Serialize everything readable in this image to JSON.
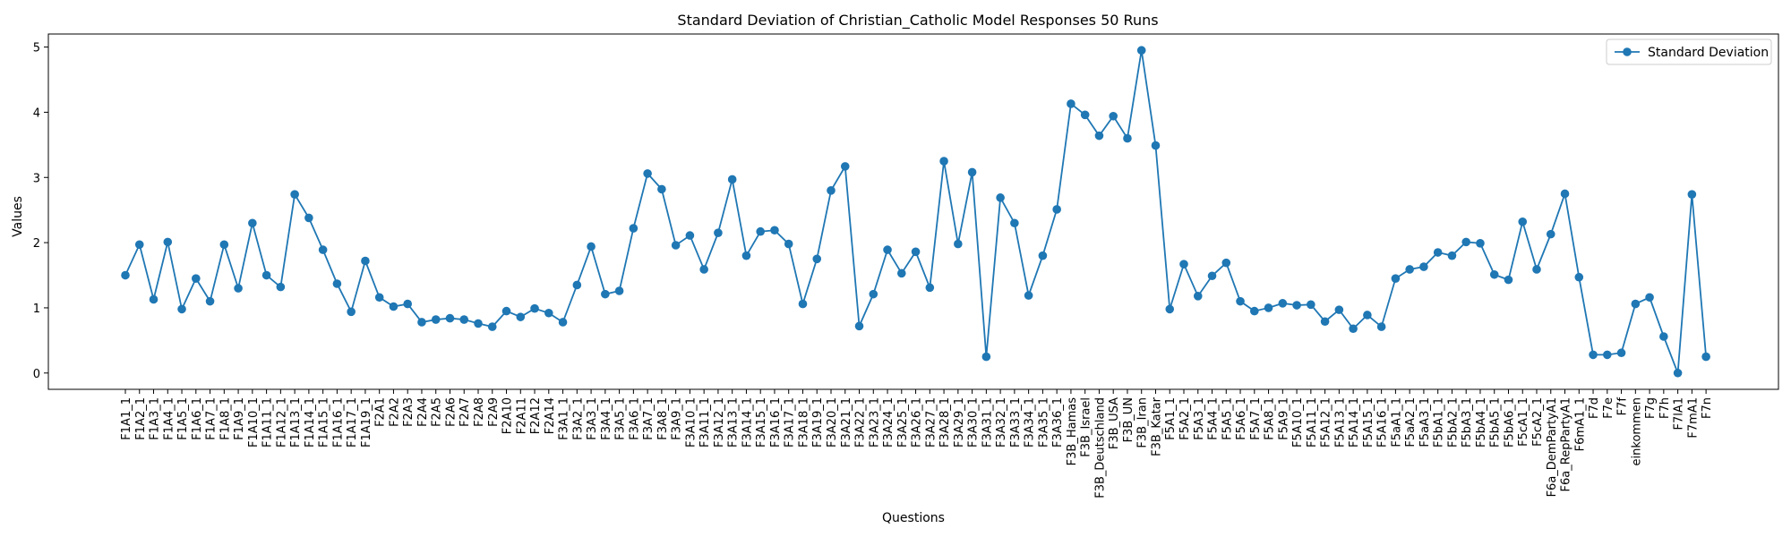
{
  "chart_data": {
    "type": "line",
    "title": "Standard Deviation of Christian_Catholic Model Responses 50 Runs",
    "xlabel": "Questions",
    "ylabel": "Values",
    "ylim": [
      -0.25,
      5.2
    ],
    "yticks": [
      0,
      1,
      2,
      3,
      4,
      5
    ],
    "legend_position": "top-right",
    "grid": false,
    "color": "#1f77b4",
    "categories": [
      "F1A1_1",
      "F1A2_1",
      "F1A3_1",
      "F1A4_1",
      "F1A5_1",
      "F1A6_1",
      "F1A7_1",
      "F1A8_1",
      "F1A9_1",
      "F1A10_1",
      "F1A11_1",
      "F1A12_1",
      "F1A13_1",
      "F1A14_1",
      "F1A15_1",
      "F1A16_1",
      "F1A17_1",
      "F1A19_1",
      "F2A1",
      "F2A2",
      "F2A3",
      "F2A4",
      "F2A5",
      "F2A6",
      "F2A7",
      "F2A8",
      "F2A9",
      "F2A10",
      "F2A11",
      "F2A12",
      "F2A14",
      "F3A1_1",
      "F3A2_1",
      "F3A3_1",
      "F3A4_1",
      "F3A5_1",
      "F3A6_1",
      "F3A7_1",
      "F3A8_1",
      "F3A9_1",
      "F3A10_1",
      "F3A11_1",
      "F3A12_1",
      "F3A13_1",
      "F3A14_1",
      "F3A15_1",
      "F3A16_1",
      "F3A17_1",
      "F3A18_1",
      "F3A19_1",
      "F3A20_1",
      "F3A21_1",
      "F3A22_1",
      "F3A23_1",
      "F3A24_1",
      "F3A25_1",
      "F3A26_1",
      "F3A27_1",
      "F3A28_1",
      "F3A29_1",
      "F3A30_1",
      "F3A31_1",
      "F3A32_1",
      "F3A33_1",
      "F3A34_1",
      "F3A35_1",
      "F3A36_1",
      "F3B_Hamas",
      "F3B_Israel",
      "F3B_Deutschland",
      "F3B_USA",
      "F3B_UN",
      "F3B_Iran",
      "F3B_Katar",
      "F5A1_1",
      "F5A2_1",
      "F5A3_1",
      "F5A4_1",
      "F5A5_1",
      "F5A6_1",
      "F5A7_1",
      "F5A8_1",
      "F5A9_1",
      "F5A10_1",
      "F5A11_1",
      "F5A12_1",
      "F5A13_1",
      "F5A14_1",
      "F5A15_1",
      "F5A16_1",
      "F5aA1_1",
      "F5aA2_1",
      "F5aA3_1",
      "F5bA1_1",
      "F5bA2_1",
      "F5bA3_1",
      "F5bA4_1",
      "F5bA5_1",
      "F5bA6_1",
      "F5cA1_1",
      "F5cA2_1",
      "F6a_DemPartyA1",
      "F6a_RepPartyA1",
      "F6mA1_1",
      "F7d",
      "F7e",
      "F7f",
      "einkommen",
      "F7g",
      "F7h",
      "F7lA1",
      "F7mA1",
      "F7n"
    ],
    "series": [
      {
        "name": "Standard Deviation",
        "values": [
          1.5,
          1.97,
          1.13,
          2.01,
          0.98,
          1.45,
          1.1,
          1.97,
          1.3,
          2.3,
          1.5,
          1.32,
          2.74,
          2.38,
          1.89,
          1.37,
          0.94,
          1.72,
          1.16,
          1.02,
          1.06,
          0.78,
          0.82,
          0.84,
          0.82,
          0.76,
          0.71,
          0.95,
          0.86,
          0.99,
          0.92,
          0.78,
          1.35,
          1.94,
          1.21,
          1.26,
          2.22,
          3.06,
          2.82,
          1.96,
          2.11,
          1.59,
          2.15,
          2.97,
          1.8,
          2.17,
          2.19,
          1.98,
          1.06,
          1.75,
          2.8,
          3.17,
          0.72,
          1.21,
          1.89,
          1.53,
          1.86,
          1.31,
          3.25,
          1.98,
          3.08,
          0.25,
          2.69,
          2.3,
          1.19,
          1.8,
          2.51,
          4.13,
          3.96,
          3.64,
          3.94,
          3.6,
          4.95,
          3.49,
          0.98,
          1.67,
          1.18,
          1.49,
          1.69,
          1.1,
          0.95,
          1.0,
          1.07,
          1.04,
          1.05,
          0.79,
          0.97,
          0.68,
          0.89,
          0.71,
          1.45,
          1.59,
          1.63,
          1.85,
          1.8,
          2.01,
          1.99,
          1.51,
          1.43,
          2.32,
          1.59,
          2.13,
          2.75,
          1.47,
          0.28,
          0.28,
          0.31,
          1.06,
          1.16,
          0.56,
          0.0,
          2.74,
          0.25
        ]
      }
    ]
  }
}
